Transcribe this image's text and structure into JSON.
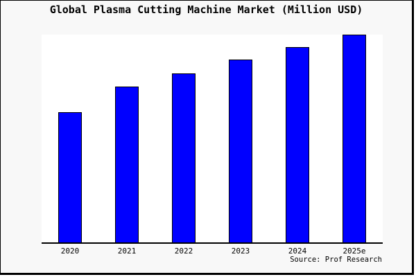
{
  "title": "Global Plasma Cutting Machine Market (Million USD)",
  "source": "Source: Prof Research",
  "colors": {
    "canvas_bg": "#f8f8f8",
    "plot_bg": "#ffffff",
    "bar_fill": "#0000ff",
    "bar_border": "#000000",
    "axis": "#000000",
    "frame_border": "#000000",
    "text": "#000000"
  },
  "chart_data": {
    "type": "bar",
    "title": "Global Plasma Cutting Machine Market (Million USD)",
    "categories": [
      "2020",
      "2021",
      "2022",
      "2023",
      "2024",
      "2025e"
    ],
    "values": [
      62.5,
      75,
      81.5,
      88,
      94,
      100
    ],
    "values_note": "No y-axis or data labels are shown; values are bar heights as percent of the tallest bar (2025e = 100).",
    "xlabel": "",
    "ylabel": "",
    "ylim": [
      0,
      100
    ],
    "grid": false,
    "legend": false,
    "bar_color": "#0000ff"
  }
}
